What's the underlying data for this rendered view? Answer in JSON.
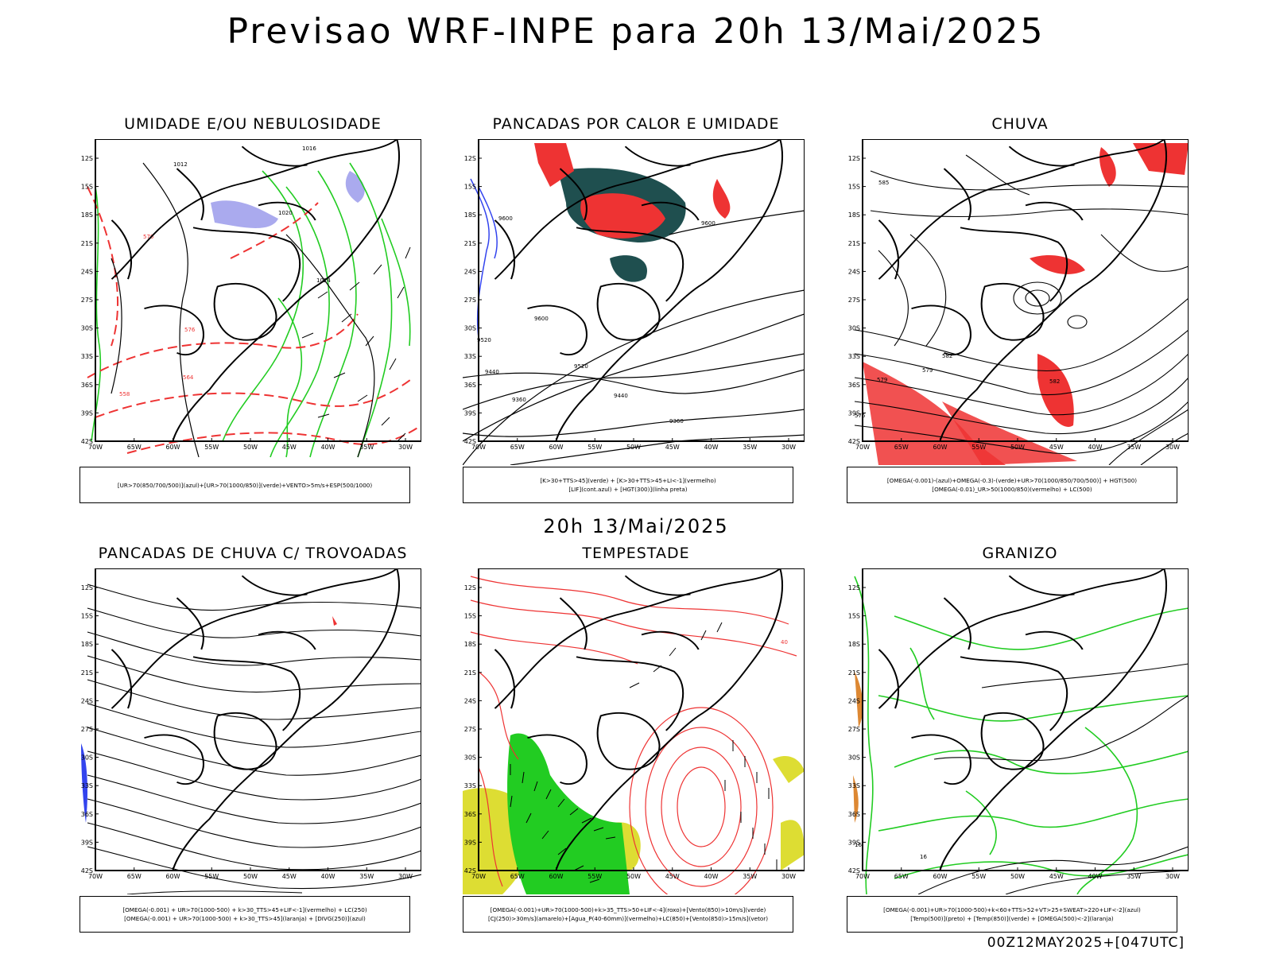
{
  "title": "Previsao WRF-INPE  para 20h 13/Mai/2025",
  "subtitle": "20h 13/Mai/2025",
  "footer": "00Z12MAY2025+[047UTC]",
  "axis": {
    "lat_labels": [
      "12S",
      "15S",
      "18S",
      "21S",
      "24S",
      "27S",
      "30S",
      "33S",
      "36S",
      "39S",
      "42S"
    ],
    "lon_labels": [
      "70W",
      "65W",
      "60W",
      "55W",
      "50W",
      "45W",
      "40W",
      "35W",
      "30W"
    ]
  },
  "panels": [
    {
      "title": "UMIDADE E/OU NEBULOSIDADE",
      "legend": [
        "[UR>70(850/700/500)](azul)+[UR>70(1000/850)](verde)+VENTO>5m/s+ESP(500/1000)"
      ],
      "contour_labels": [
        "1012",
        "1016",
        "1020",
        "1024",
        "576",
        "570",
        "564",
        "558"
      ]
    },
    {
      "title": "PANCADAS POR CALOR E UMIDADE",
      "legend": [
        "[K>30+TTS>45](verde) + [K>30+TTS>45+LI<-1](vermelho)",
        "[LIF](cont.azul) + [HGT(300)](linha preta)"
      ],
      "contour_labels": [
        "9600",
        "9520",
        "9440",
        "9360"
      ]
    },
    {
      "title": "CHUVA",
      "legend": [
        "[OMEGA(-0.001)-(azul)+OMEGA(-0.3)-(verde)+UR>70(1000/850/700/500)] + HGT(500)",
        "[OMEGA(-0.01)_UR>50(1000/850)(vermelho) + LC(500)"
      ],
      "contour_labels": [
        "585",
        "582",
        "579",
        "576"
      ]
    },
    {
      "title": "PANCADAS DE CHUVA C/ TROVOADAS",
      "legend": [
        "[OMEGA(-0.001) + UR>70(1000-500) + k>30_TTS>45+LIF<-1](vermelho) + LC(250)",
        "[OMEGA(-0.001) + UR>70(1000-500) + k>30_TTS>45](laranja) + [DIVG(250)](azul)"
      ],
      "contour_labels": []
    },
    {
      "title": "TEMPESTADE",
      "legend": [
        "[OMEGA(-0.001)+UR>70(1000-500)+k>35_TTS>50+LIF<-4](roxo)+[Vento(850)>10m/s](verde)",
        "[CJ(250)>30m/s](amarelo)+[Agua_P(40-60mm)](vermelho)+LC(850)+[Vento(850)>15m/s](vetor)"
      ],
      "contour_labels": [
        "40"
      ]
    },
    {
      "title": "GRANIZO",
      "legend": [
        "[OMEGA(-0.001)+UR>70(1000-500)+k<60+TTS>52+VT>25+SWEAT>220+LIF<-2](azul)",
        "[Temp(500)](preto) + [Temp(850)](verde) + [OMEGA(500)<-2](laranja)"
      ],
      "contour_labels": [
        "16"
      ]
    }
  ],
  "colors": {
    "green": "#22cc22",
    "red": "#ee3333",
    "blue": "#3344ee",
    "lavender": "#aaaaee",
    "darkteal": "#1f4f4f",
    "yellow": "#dddd33",
    "orange": "#dd8833"
  }
}
